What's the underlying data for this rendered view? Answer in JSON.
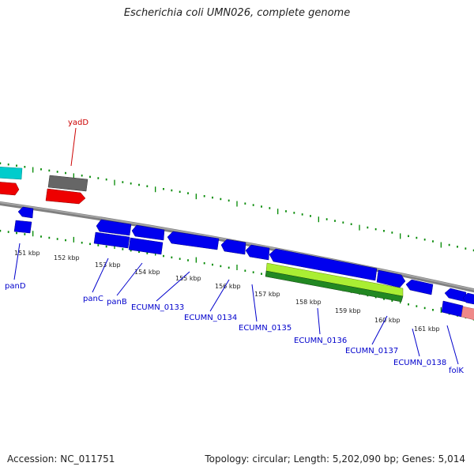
{
  "title": "Escherichia coli UMN026, complete genome",
  "footer": {
    "accession": "Accession: NC_011751",
    "summary": "Topology: circular; Length: 5,202,090 bp; Genes: 5,014"
  },
  "colors": {
    "backbone": "#808080",
    "cds_forward": "#0000ee",
    "cds_reverse": "#0000ee",
    "rna": "#ee0000",
    "pseudo": "#666666",
    "misc_cyan": "#00cccc",
    "highlight_light_green": "#aaee33",
    "highlight_dark_green": "#228822",
    "pink": "#ee8888",
    "tick": "#008800",
    "label_blue": "#0000cc",
    "label_red": "#cc0000"
  },
  "ticks": [
    "151 kbp",
    "152 kbp",
    "153 kbp",
    "154 kbp",
    "155 kbp",
    "156 kbp",
    "157 kbp",
    "158 kbp",
    "159 kbp",
    "160 kbp",
    "161 kbp"
  ],
  "genes": [
    {
      "name": "yadD",
      "color": "label_red"
    },
    {
      "name": "panD",
      "color": "label_blue"
    },
    {
      "name": "panC",
      "color": "label_blue"
    },
    {
      "name": "panB",
      "color": "label_blue"
    },
    {
      "name": "ECUMN_0133",
      "color": "label_blue"
    },
    {
      "name": "ECUMN_0134",
      "color": "label_blue"
    },
    {
      "name": "ECUMN_0135",
      "color": "label_blue"
    },
    {
      "name": "ECUMN_0136",
      "color": "label_blue"
    },
    {
      "name": "ECUMN_0137",
      "color": "label_blue"
    },
    {
      "name": "ECUMN_0138",
      "color": "label_blue"
    },
    {
      "name": "folK",
      "color": "label_blue"
    }
  ]
}
